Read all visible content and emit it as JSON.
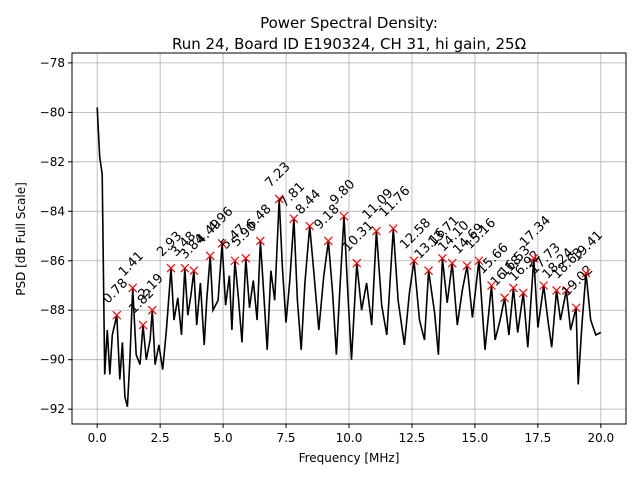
{
  "chart_data": {
    "type": "line",
    "title": "Power Spectral Density:",
    "subtitle": "Run 24, Board ID E190324, CH 31, hi gain, 25Ω",
    "x_label": "Frequency [MHz]",
    "y_label": "PSD [dB Full Scale]",
    "xlim": [
      -1,
      21
    ],
    "ylim": [
      -92.6,
      -77.6
    ],
    "xticks": [
      {
        "value": 0,
        "label": "0.0"
      },
      2.5,
      {
        "value": 5,
        "label": "5.0"
      },
      7.5,
      {
        "value": 10,
        "label": "10.0"
      },
      12.5,
      {
        "value": 15,
        "label": "15.0"
      },
      17.5,
      {
        "value": 20,
        "label": "20.0"
      }
    ],
    "yticks": [
      {
        "value": -92,
        "label": "−92"
      },
      {
        "value": -90,
        "label": "−90"
      },
      {
        "value": -88,
        "label": "−88"
      },
      {
        "value": -86,
        "label": "−86"
      },
      {
        "value": -84,
        "label": "−84"
      },
      {
        "value": -82,
        "label": "−82"
      },
      {
        "value": -80,
        "label": "−80"
      },
      {
        "value": -78,
        "label": "−78"
      }
    ],
    "grid": true,
    "series": [
      {
        "color": "#000000",
        "x": [
          0.0,
          0.1,
          0.2,
          0.3,
          0.4,
          0.5,
          0.6,
          0.78,
          0.9,
          1.0,
          1.1,
          1.2,
          1.3,
          1.41,
          1.55,
          1.7,
          1.82,
          1.95,
          2.1,
          2.19,
          2.3,
          2.45,
          2.6,
          2.75,
          2.93,
          3.05,
          3.2,
          3.35,
          3.48,
          3.6,
          3.72,
          3.84,
          3.95,
          4.1,
          4.25,
          4.35,
          4.49,
          4.6,
          4.8,
          4.96,
          5.1,
          5.25,
          5.35,
          5.47,
          5.6,
          5.75,
          5.9,
          6.05,
          6.2,
          6.35,
          6.48,
          6.6,
          6.75,
          6.9,
          7.05,
          7.23,
          7.35,
          7.5,
          7.65,
          7.81,
          7.95,
          8.1,
          8.25,
          8.44,
          8.6,
          8.8,
          9.0,
          9.18,
          9.35,
          9.5,
          9.65,
          9.8,
          9.95,
          10.1,
          10.31,
          10.5,
          10.7,
          10.9,
          11.09,
          11.3,
          11.5,
          11.76,
          11.95,
          12.2,
          12.4,
          12.58,
          12.8,
          13.0,
          13.16,
          13.4,
          13.55,
          13.71,
          13.9,
          14.1,
          14.3,
          14.5,
          14.69,
          14.9,
          15.16,
          15.4,
          15.66,
          15.8,
          16.0,
          16.18,
          16.35,
          16.53,
          16.7,
          16.92,
          17.1,
          17.34,
          17.5,
          17.73,
          17.9,
          18.05,
          18.24,
          18.4,
          18.63,
          18.8,
          19.02,
          19.1,
          19.25,
          19.41,
          19.6,
          19.8,
          20.0
        ],
        "values": [
          -79.8,
          -81.8,
          -82.5,
          -90.6,
          -88.8,
          -90.6,
          -89.0,
          -88.2,
          -90.8,
          -89.3,
          -91.5,
          -91.9,
          -90.0,
          -87.1,
          -89.8,
          -90.2,
          -88.6,
          -90.0,
          -89.2,
          -88.0,
          -90.2,
          -89.4,
          -90.4,
          -88.8,
          -86.3,
          -88.4,
          -87.5,
          -89.0,
          -86.3,
          -88.2,
          -87.4,
          -86.4,
          -88.6,
          -86.9,
          -89.4,
          -87.6,
          -85.8,
          -88.0,
          -87.6,
          -85.3,
          -87.8,
          -86.6,
          -88.8,
          -86.0,
          -87.4,
          -89.3,
          -85.9,
          -87.9,
          -86.8,
          -88.4,
          -85.2,
          -87.1,
          -89.6,
          -86.4,
          -87.6,
          -83.5,
          -86.2,
          -88.5,
          -86.8,
          -84.3,
          -87.6,
          -89.6,
          -86.9,
          -84.6,
          -86.4,
          -88.8,
          -86.6,
          -85.2,
          -87.3,
          -89.8,
          -86.9,
          -84.2,
          -87.2,
          -90.0,
          -86.1,
          -88.0,
          -86.9,
          -88.6,
          -84.8,
          -87.8,
          -89.0,
          -84.7,
          -87.6,
          -89.4,
          -87.3,
          -86.0,
          -88.4,
          -89.2,
          -86.4,
          -88.1,
          -89.8,
          -85.9,
          -87.7,
          -86.1,
          -88.6,
          -87.2,
          -86.2,
          -88.3,
          -86.0,
          -89.6,
          -87.0,
          -89.2,
          -88.4,
          -87.5,
          -89.0,
          -87.1,
          -88.9,
          -87.3,
          -89.5,
          -85.9,
          -88.7,
          -87.0,
          -88.4,
          -89.5,
          -87.2,
          -88.4,
          -87.2,
          -88.8,
          -87.9,
          -91.0,
          -88.6,
          -86.5,
          -88.4,
          -89.0,
          -88.9
        ]
      }
    ],
    "peaks": {
      "color": "#ff0000",
      "x": [
        0.78,
        1.41,
        1.82,
        2.19,
        2.93,
        3.48,
        3.84,
        4.49,
        4.96,
        5.47,
        5.9,
        6.48,
        7.23,
        7.81,
        8.44,
        9.18,
        9.8,
        10.31,
        11.09,
        11.76,
        12.58,
        13.16,
        13.71,
        14.1,
        14.69,
        15.16,
        15.66,
        16.18,
        16.53,
        16.92,
        17.34,
        17.73,
        18.24,
        18.63,
        19.02,
        19.41
      ],
      "x_labels": [
        "0.78",
        "1.41",
        "1.82",
        "2.19",
        "2.93",
        "3.48",
        "3.84",
        "4.49",
        "4.96",
        "5.47",
        "5.90",
        "6.48",
        "7.23",
        "7.81",
        "8.44",
        "9.18",
        "9.80",
        "10.31",
        "11.09",
        "11.76",
        "12.58",
        "13.16",
        "13.71",
        "14.10",
        "14.69",
        "15.16",
        "15.66",
        "16.18",
        "16.53",
        "16.92",
        "17.34",
        "17.73",
        "18.24",
        "18.63",
        "19.02",
        "19.41"
      ],
      "values": [
        -88.2,
        -87.1,
        -88.6,
        -88.0,
        -86.3,
        -86.3,
        -86.4,
        -85.8,
        -85.3,
        -86.0,
        -85.9,
        -85.2,
        -83.5,
        -84.3,
        -84.6,
        -85.2,
        -84.2,
        -86.1,
        -84.8,
        -84.7,
        -86.0,
        -86.4,
        -85.9,
        -86.1,
        -86.2,
        -86.0,
        -87.0,
        -87.5,
        -87.1,
        -87.3,
        -85.9,
        -87.0,
        -87.2,
        -87.2,
        -87.9,
        -86.5
      ]
    }
  }
}
